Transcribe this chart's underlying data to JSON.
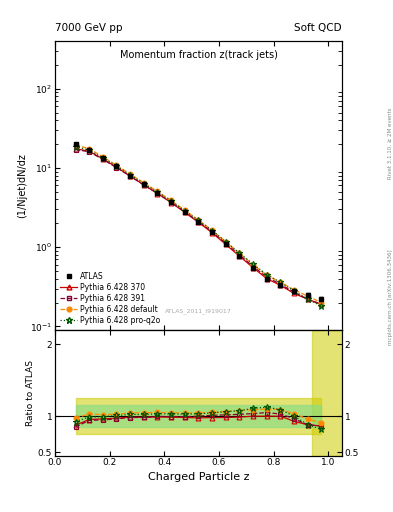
{
  "title": "Momentum fraction z(track jets)",
  "header_left": "7000 GeV pp",
  "header_right": "Soft QCD",
  "ylabel_main": "(1/Njet)dN/dz",
  "ylabel_ratio": "Ratio to ATLAS",
  "xlabel": "Charged Particle z",
  "right_label1": "Rivet 3.1.10, ≥ 2M events",
  "right_label2": "mcplots.cern.ch [arXiv:1306.3436]",
  "watermark": "ATLAS_2011_I919017",
  "legend_entries": [
    "ATLAS",
    "Pythia 6.428 370",
    "Pythia 6.428 391",
    "Pythia 6.428 default",
    "Pythia 6.428 pro-q2o"
  ],
  "z_values": [
    0.075,
    0.125,
    0.175,
    0.225,
    0.275,
    0.325,
    0.375,
    0.425,
    0.475,
    0.525,
    0.575,
    0.625,
    0.675,
    0.725,
    0.775,
    0.825,
    0.875,
    0.925,
    0.975
  ],
  "atlas_y": [
    20.0,
    17.0,
    13.5,
    10.5,
    8.0,
    6.2,
    4.8,
    3.7,
    2.8,
    2.1,
    1.55,
    1.1,
    0.78,
    0.55,
    0.4,
    0.33,
    0.28,
    0.25,
    0.22
  ],
  "atlas_err": [
    0.5,
    0.4,
    0.3,
    0.25,
    0.2,
    0.15,
    0.12,
    0.09,
    0.07,
    0.055,
    0.04,
    0.03,
    0.025,
    0.018,
    0.014,
    0.012,
    0.012,
    0.012,
    0.012
  ],
  "py370_y": [
    17.5,
    16.2,
    13.0,
    10.2,
    7.9,
    6.1,
    4.75,
    3.65,
    2.75,
    2.05,
    1.52,
    1.08,
    0.77,
    0.55,
    0.4,
    0.33,
    0.26,
    0.22,
    0.19
  ],
  "py391_y": [
    17.0,
    16.0,
    12.8,
    10.1,
    7.85,
    6.1,
    4.78,
    3.68,
    2.78,
    2.1,
    1.57,
    1.12,
    0.8,
    0.57,
    0.42,
    0.34,
    0.27,
    0.22,
    0.19
  ],
  "pydef_y": [
    19.5,
    17.5,
    13.8,
    10.8,
    8.35,
    6.5,
    5.05,
    3.88,
    2.92,
    2.2,
    1.63,
    1.17,
    0.84,
    0.6,
    0.44,
    0.36,
    0.29,
    0.24,
    0.2
  ],
  "pyq2o_y": [
    18.5,
    16.8,
    13.4,
    10.6,
    8.2,
    6.35,
    4.95,
    3.82,
    2.88,
    2.17,
    1.62,
    1.17,
    0.84,
    0.61,
    0.45,
    0.36,
    0.28,
    0.22,
    0.18
  ],
  "band_yellow_lo": 0.75,
  "band_yellow_hi": 1.25,
  "band_green_lo": 0.85,
  "band_green_hi": 1.15,
  "band_yellow_color": "#cccc00",
  "band_green_color": "#88dd88",
  "atlas_color": "#000000",
  "py370_color": "#cc0000",
  "py391_color": "#880033",
  "pydef_color": "#ff8800",
  "pyq2o_color": "#005500",
  "ylim_main": [
    0.09,
    400
  ],
  "ylim_ratio": [
    0.45,
    2.2
  ],
  "xlim": [
    0.0,
    1.05
  ],
  "ratio_yticks": [
    0.5,
    1.0,
    2.0
  ],
  "ratio_yticklabels": [
    "0.5",
    "1",
    "2"
  ]
}
